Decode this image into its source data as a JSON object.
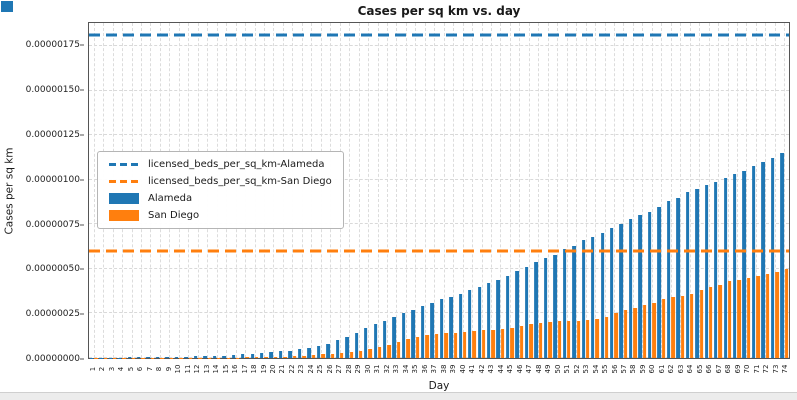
{
  "ui": {
    "corner_square_color": "#1f77b4",
    "bottom_strip_color": "#ececec"
  },
  "chart_data": {
    "type": "bar",
    "title": "Cases per sq km vs. day",
    "xlabel": "Day",
    "ylabel": "Cases per sq km",
    "value_unit": "1e-8 cases per sq km",
    "grid": true,
    "legend_position": "center-left",
    "categories": [
      "1",
      "2",
      "3",
      "4",
      "5",
      "6",
      "7",
      "8",
      "9",
      "10",
      "11",
      "12",
      "13",
      "14",
      "15",
      "16",
      "17",
      "18",
      "19",
      "20",
      "21",
      "22",
      "23",
      "24",
      "25",
      "26",
      "27",
      "28",
      "29",
      "30",
      "31",
      "32",
      "33",
      "34",
      "35",
      "36",
      "37",
      "38",
      "39",
      "40",
      "41",
      "42",
      "43",
      "44",
      "45",
      "46",
      "47",
      "48",
      "49",
      "50",
      "51",
      "52",
      "53",
      "54",
      "55",
      "56",
      "57",
      "58",
      "59",
      "60",
      "61",
      "62",
      "63",
      "64",
      "65",
      "66",
      "67",
      "68",
      "69",
      "70",
      "71",
      "72",
      "73",
      "74"
    ],
    "series": [
      {
        "name": "Alameda",
        "color": "#1f77b4",
        "values": [
          0.1,
          0.1,
          0.2,
          0.2,
          0.3,
          0.3,
          0.4,
          0.4,
          0.5,
          0.6,
          0.8,
          0.9,
          1.0,
          1.2,
          1.4,
          1.7,
          2.0,
          2.4,
          2.8,
          3.2,
          3.7,
          4.2,
          4.8,
          5.5,
          6.5,
          8,
          10,
          12,
          14,
          17,
          19,
          21,
          23,
          25,
          27,
          29,
          31,
          33,
          34,
          36,
          38,
          40,
          42,
          44,
          46,
          49,
          51,
          54,
          56,
          58,
          61,
          63,
          66,
          68,
          70,
          73,
          75,
          78,
          80,
          82,
          85,
          88,
          90,
          93,
          95,
          97,
          99,
          101,
          103,
          105,
          108,
          110,
          112,
          115
        ]
      },
      {
        "name": "San Diego",
        "color": "#ff7f0e",
        "values": [
          0.05,
          0.05,
          0.05,
          0.05,
          0.05,
          0.05,
          0.05,
          0.05,
          0.05,
          0.05,
          0.1,
          0.1,
          0.1,
          0.1,
          0.1,
          0.2,
          0.3,
          0.4,
          0.5,
          0.6,
          0.8,
          1.0,
          1.2,
          1.5,
          2.0,
          2.5,
          3.0,
          3.5,
          4.0,
          5.0,
          6.0,
          7.5,
          9.0,
          10.5,
          12,
          13,
          13.5,
          14,
          14,
          14.5,
          15,
          15.5,
          16,
          16.5,
          17,
          18,
          19,
          19.5,
          20,
          20.5,
          21,
          21,
          21.5,
          22,
          23,
          25,
          27,
          28,
          30,
          31,
          33,
          34,
          35,
          36,
          38,
          40,
          41,
          43,
          44,
          45,
          46,
          47,
          48,
          50
        ]
      }
    ],
    "hlines": [
      {
        "name": "licensed_beds_per_sq_km-Alameda",
        "value": 181,
        "color": "#1f77b4",
        "style": "dashed"
      },
      {
        "name": "licensed_beds_per_sq_km-San Diego",
        "value": 60,
        "color": "#ff7f0e",
        "style": "dashed"
      }
    ],
    "ylim": [
      0,
      188
    ],
    "yticks": {
      "values": [
        0,
        25,
        50,
        75,
        100,
        125,
        150,
        175
      ],
      "labels": [
        "0.00000000",
        "0.00000025",
        "0.00000050",
        "0.00000075",
        "0.00000100",
        "0.00000125",
        "0.00000150",
        "0.00000175"
      ]
    }
  }
}
